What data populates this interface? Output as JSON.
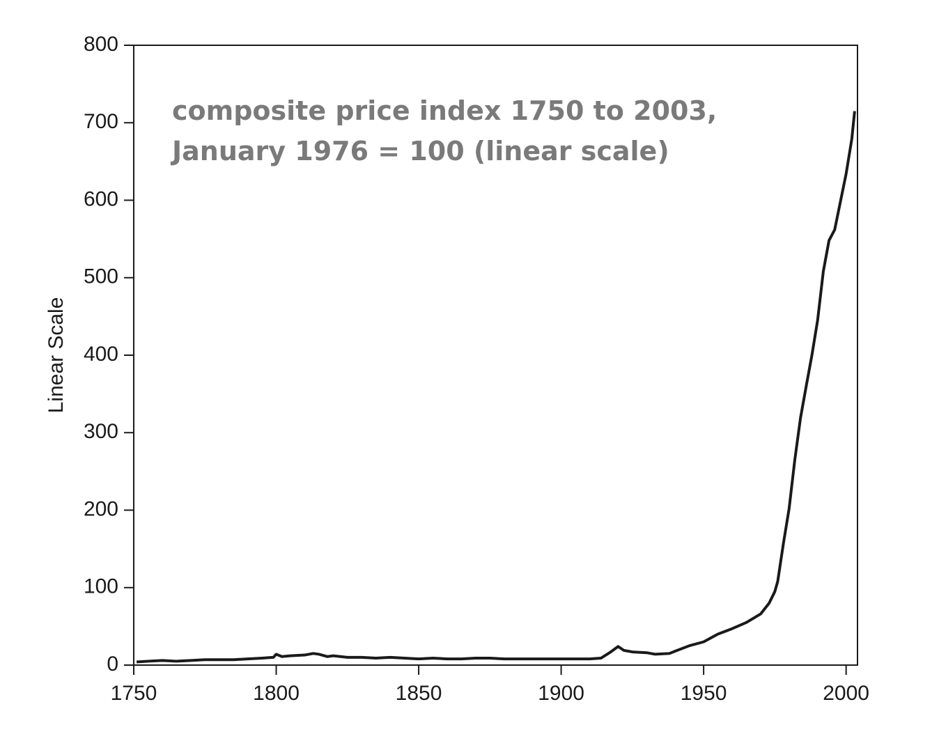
{
  "chart_data": {
    "type": "line",
    "annotation": [
      "composite price index 1750 to 2003,",
      "January 1976 = 100 (linear scale)"
    ],
    "y_label": "Linear Scale",
    "x": [
      1751,
      1755,
      1760,
      1765,
      1770,
      1775,
      1780,
      1785,
      1790,
      1795,
      1799,
      1800,
      1802,
      1805,
      1810,
      1813,
      1815,
      1818,
      1820,
      1825,
      1830,
      1835,
      1840,
      1845,
      1850,
      1855,
      1860,
      1865,
      1870,
      1875,
      1880,
      1885,
      1890,
      1895,
      1900,
      1905,
      1910,
      1914,
      1917,
      1920,
      1922,
      1925,
      1930,
      1933,
      1938,
      1940,
      1945,
      1950,
      1955,
      1960,
      1965,
      1970,
      1973,
      1975,
      1976,
      1978,
      1980,
      1982,
      1984,
      1986,
      1988,
      1990,
      1992,
      1994,
      1996,
      1998,
      2000,
      2002,
      2003
    ],
    "series": [
      {
        "name": "composite price index",
        "color": "#1a1a1a",
        "values": [
          4,
          5,
          6,
          5,
          6,
          7,
          7,
          7,
          8,
          9,
          10,
          14,
          11,
          12,
          13,
          15,
          14,
          11,
          12,
          10,
          10,
          9,
          10,
          9,
          8,
          9,
          8,
          8,
          9,
          9,
          8,
          8,
          8,
          8,
          8,
          8,
          8,
          9,
          16,
          24,
          19,
          17,
          16,
          14,
          15,
          18,
          25,
          30,
          40,
          47,
          55,
          66,
          80,
          95,
          108,
          157,
          202,
          265,
          319,
          360,
          400,
          445,
          508,
          548,
          562,
          598,
          634,
          679,
          715
        ]
      }
    ],
    "xlim": [
      1750,
      2004
    ],
    "xticks": [
      1750,
      1800,
      1850,
      1900,
      1950,
      2000
    ],
    "ylim": [
      0,
      800
    ],
    "yticks": [
      0,
      100,
      200,
      300,
      400,
      500,
      600,
      700,
      800
    ]
  }
}
